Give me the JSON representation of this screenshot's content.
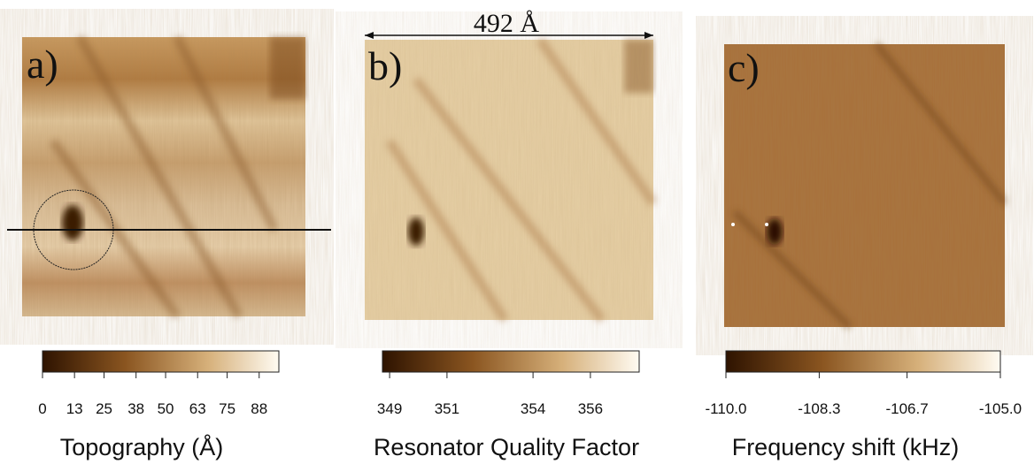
{
  "annotation": "492 Å",
  "panels": [
    {
      "label": "a)",
      "colorbar": {
        "title": "Topography (Å)",
        "lim": [
          0,
          96
        ],
        "ticks": [
          0,
          13,
          25,
          38,
          50,
          63,
          75,
          88
        ]
      }
    },
    {
      "label": "b)",
      "colorbar": {
        "title": "Resonator Quality Factor",
        "lim": [
          348.75,
          357.7
        ],
        "ticks": [
          349,
          351,
          354,
          356
        ]
      }
    },
    {
      "label": "c)",
      "colorbar": {
        "title": "Frequency shift (kHz)",
        "lim": [
          -110,
          -105
        ],
        "ticks": [
          {
            "value": -110,
            "label": "-110.0"
          },
          {
            "value": -108.3,
            "label": "-108.3"
          },
          {
            "value": -106.7,
            "label": "-106.7"
          },
          {
            "value": -105,
            "label": "-105.0"
          }
        ]
      }
    }
  ]
}
